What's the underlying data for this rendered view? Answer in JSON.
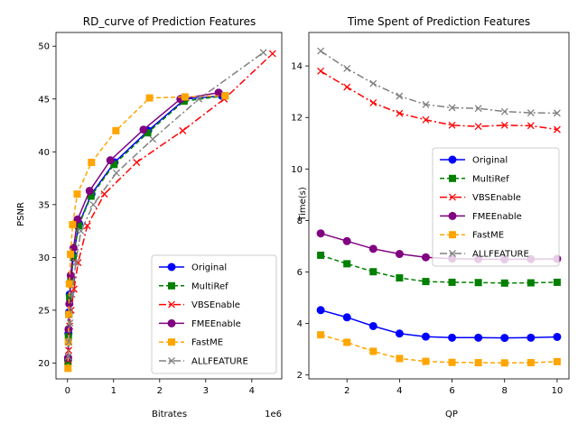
{
  "chart_data": [
    {
      "type": "line",
      "title": "RD_curve of Prediction Features",
      "xlabel": "Bitrates",
      "ylabel": "PSNR",
      "x_scale_label": "1e6",
      "xlim": [
        -250000,
        4650000
      ],
      "ylim": [
        18.5,
        51.3
      ],
      "xticks": [
        0,
        1000000,
        2000000,
        3000000,
        4000000
      ],
      "xtick_labels": [
        "0",
        "1",
        "2",
        "3",
        "4"
      ],
      "yticks": [
        20,
        25,
        30,
        35,
        40,
        45,
        50
      ],
      "ytick_labels": [
        "20",
        "25",
        "30",
        "35",
        "40",
        "45",
        "50"
      ],
      "grid": false,
      "legend_position": "lower-right",
      "series": [
        {
          "name": "Original",
          "color": "#0000ff",
          "linestyle": "solid",
          "marker": "circle",
          "x": [
            12000,
            20000,
            32000,
            48000,
            80000,
            130000,
            250000,
            520000,
            1020000,
            1750000,
            2550000,
            3350000
          ],
          "y": [
            20.3,
            22.8,
            24.8,
            26.5,
            28.0,
            30.2,
            33.2,
            36.0,
            39.0,
            42.0,
            45.0,
            45.3
          ]
        },
        {
          "name": "MultiRef",
          "color": "#008000",
          "linestyle": "dashed",
          "marker": "square",
          "x": [
            11000,
            19000,
            30000,
            46000,
            75000,
            125000,
            240000,
            510000,
            1010000,
            1740000,
            2530000,
            3420000
          ],
          "y": [
            20.1,
            22.5,
            24.6,
            26.2,
            27.7,
            30.0,
            33.0,
            35.8,
            38.8,
            41.8,
            44.8,
            45.3
          ]
        },
        {
          "name": "VBSEnable",
          "color": "#ff0000",
          "linestyle": "dashdot",
          "marker": "x",
          "x": [
            14000,
            25000,
            45000,
            80000,
            140000,
            230000,
            430000,
            800000,
            1500000,
            2500000,
            3400000,
            4450000
          ],
          "y": [
            20.3,
            21.2,
            23.5,
            25.0,
            27.0,
            29.5,
            33.0,
            36.0,
            39.0,
            42.0,
            45.0,
            49.3
          ]
        },
        {
          "name": "FMEEnable",
          "color": "#800080",
          "linestyle": "solid",
          "marker": "circle",
          "x": [
            13000,
            22000,
            40000,
            70000,
            130000,
            220000,
            480000,
            930000,
            1650000,
            2450000,
            3280000
          ],
          "y": [
            20.5,
            23.2,
            25.6,
            28.3,
            30.9,
            33.6,
            36.3,
            39.2,
            42.1,
            45.0,
            45.6
          ]
        },
        {
          "name": "FastME",
          "color": "#ffa500",
          "linestyle": "dashed",
          "marker": "square",
          "x": [
            10000,
            18000,
            28000,
            40000,
            65000,
            110000,
            210000,
            520000,
            1050000,
            1780000,
            2550000,
            3420000
          ],
          "y": [
            19.5,
            22.0,
            24.6,
            27.5,
            30.3,
            33.1,
            36.0,
            39.0,
            42.0,
            45.1,
            45.2,
            45.3
          ]
        },
        {
          "name": "ALLFEATURE",
          "color": "#808080",
          "linestyle": "dashdot",
          "marker": "x",
          "x": [
            16000,
            30000,
            55000,
            100000,
            180000,
            290000,
            560000,
            1060000,
            1850000,
            2850000,
            4250000
          ],
          "y": [
            20.6,
            22.0,
            23.8,
            26.5,
            29.5,
            32.5,
            35.0,
            38.0,
            41.2,
            45.0,
            49.4
          ]
        }
      ]
    },
    {
      "type": "line",
      "title": "Time Spent of Prediction Features",
      "xlabel": "QP",
      "ylabel": "Time(s)",
      "xlim": [
        0.55,
        10.45
      ],
      "ylim": [
        1.85,
        15.3
      ],
      "xticks": [
        2,
        4,
        6,
        8,
        10
      ],
      "xtick_labels": [
        "2",
        "4",
        "6",
        "8",
        "10"
      ],
      "yticks": [
        2,
        4,
        6,
        8,
        10,
        12,
        14
      ],
      "ytick_labels": [
        "2",
        "4",
        "6",
        "8",
        "10",
        "12",
        "14"
      ],
      "grid": false,
      "legend_position": "center-right",
      "series": [
        {
          "name": "Original",
          "color": "#0000ff",
          "linestyle": "solid",
          "marker": "circle",
          "x": [
            1,
            2,
            3,
            4,
            5,
            6,
            7,
            8,
            9,
            10
          ],
          "y": [
            4.52,
            4.24,
            3.9,
            3.61,
            3.49,
            3.45,
            3.45,
            3.44,
            3.45,
            3.48
          ]
        },
        {
          "name": "MultiRef",
          "color": "#008000",
          "linestyle": "dashed",
          "marker": "square",
          "x": [
            1,
            2,
            3,
            4,
            5,
            6,
            7,
            8,
            9,
            10
          ],
          "y": [
            6.65,
            6.32,
            6.01,
            5.77,
            5.63,
            5.6,
            5.59,
            5.57,
            5.58,
            5.6
          ]
        },
        {
          "name": "VBSEnable",
          "color": "#ff0000",
          "linestyle": "dashdot",
          "marker": "x",
          "x": [
            1,
            2,
            3,
            4,
            5,
            6,
            7,
            8,
            9,
            10
          ],
          "y": [
            13.8,
            13.18,
            12.57,
            12.16,
            11.91,
            11.7,
            11.65,
            11.7,
            11.68,
            11.53
          ]
        },
        {
          "name": "FMEEnable",
          "color": "#800080",
          "linestyle": "solid",
          "marker": "circle",
          "x": [
            1,
            2,
            3,
            4,
            5,
            6,
            7,
            8,
            9,
            10
          ],
          "y": [
            7.5,
            7.2,
            6.9,
            6.7,
            6.57,
            6.52,
            6.5,
            6.49,
            6.5,
            6.51
          ]
        },
        {
          "name": "FastME",
          "color": "#ffa500",
          "linestyle": "dashed",
          "marker": "square",
          "x": [
            1,
            2,
            3,
            4,
            5,
            6,
            7,
            8,
            9,
            10
          ],
          "y": [
            3.56,
            3.27,
            2.92,
            2.64,
            2.53,
            2.49,
            2.48,
            2.47,
            2.48,
            2.52
          ]
        },
        {
          "name": "ALLFEATURE",
          "color": "#808080",
          "linestyle": "dashdot",
          "marker": "x",
          "x": [
            1,
            2,
            3,
            4,
            5,
            6,
            7,
            8,
            9,
            10
          ],
          "y": [
            14.58,
            13.9,
            13.32,
            12.83,
            12.5,
            12.38,
            12.35,
            12.23,
            12.18,
            12.17
          ]
        }
      ]
    }
  ]
}
